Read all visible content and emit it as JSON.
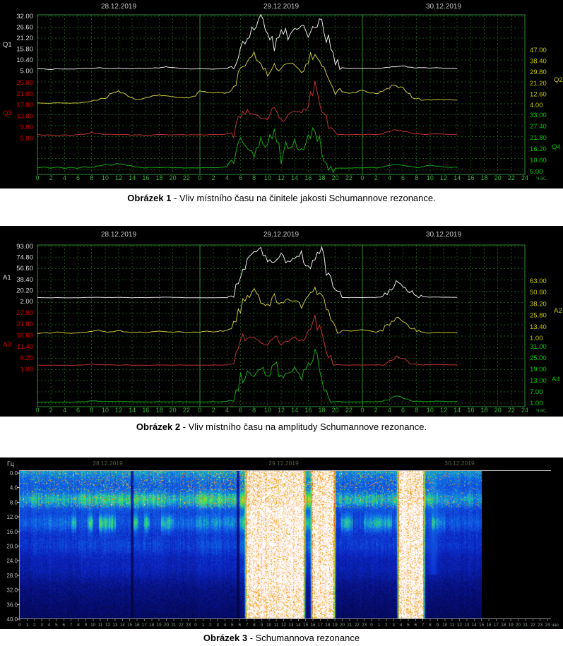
{
  "colors": {
    "page_bg": "#ffffff",
    "panel_bg": "#000000",
    "grid": "#1d4f1d",
    "grid_bright": "#2f8b2f",
    "hour_text": "#3fae3f",
    "hour_unit_text": "#2d7a2d",
    "date_text": "#c8c8c8",
    "caption_text": "#000000",
    "spec_date_text": "#5a5a46",
    "spec_freq_text": "#bebebe",
    "spec_hour_text": "#8fa08f",
    "spec_border_top": "#b5b5b5",
    "spec_border": "#8a8a8a"
  },
  "captions": [
    {
      "bold": "Obrázek 1",
      "rest": " - Vliv místního času na činitele jakosti Schumannove rezonance."
    },
    {
      "bold": "Obrázek 2",
      "rest": " - Vliv místního času na amplitudy Schumannove rezonance."
    },
    {
      "bold": "Obrázek 3",
      "rest": " - Schumannova rezonance"
    }
  ],
  "chart_data": [
    {
      "type": "line",
      "title": "Vliv místního času na činitele jakosti Schumannove rezonance",
      "dates": [
        "28.12.2019",
        "29.12.2019",
        "30.12.2019"
      ],
      "x_hour_labels": [
        "0",
        "2",
        "4",
        "6",
        "8",
        "10",
        "12",
        "14",
        "16",
        "18",
        "20",
        "22"
      ],
      "x_last_label": "24",
      "x_unit": "час.",
      "hours_per_day": 24,
      "days": 3,
      "grid": true,
      "axes": [
        {
          "name": "Q1",
          "side": "left",
          "color": "#e8e8e8",
          "label_color": "#dcdcdc",
          "min": 5,
          "max": 32,
          "ticks": [
            "32.00",
            "26.60",
            "21.20",
            "15.80",
            "10.40",
            "5.00"
          ]
        },
        {
          "name": "Q3",
          "side": "left",
          "color": "#c03232",
          "label_color": "#d40000",
          "min": 5,
          "max": 25,
          "ticks": [
            "25.00",
            "21.00",
            "17.00",
            "13.00",
            "9.00",
            "5.00"
          ]
        },
        {
          "name": "Q2",
          "side": "right",
          "color": "#c8c832",
          "label_color": "#c8c800",
          "min": 4,
          "max": 47,
          "ticks": [
            "47.00",
            "38.40",
            "29.80",
            "21.20",
            "12.60",
            "4.00"
          ]
        },
        {
          "name": "Q4",
          "side": "right",
          "color": "#16a816",
          "label_color": "#00c800",
          "min": 5,
          "max": 33,
          "ticks": [
            "33.00",
            "27.40",
            "21.80",
            "16.20",
            "10.60",
            "5.00"
          ]
        }
      ],
      "series": [
        {
          "name": "Q1",
          "axis": "Q1",
          "values": [
            6.2,
            6,
            5.8,
            6.1,
            6,
            5.9,
            6.1,
            6.4,
            6.2,
            6.6,
            6.3,
            6.1,
            6.5,
            6.2,
            6,
            6.3,
            6.1,
            6.4,
            6.6,
            7,
            6.6,
            6.3,
            6.1,
            6,
            6.1,
            6,
            5.9,
            6.1,
            6.3,
            7.5,
            14,
            23,
            26,
            31,
            24,
            18,
            27,
            22,
            25,
            28,
            22,
            27,
            31,
            19,
            7,
            6.4,
            6.2,
            6.3,
            6.2,
            6.3,
            6.1,
            6.4,
            6.8,
            7.2,
            7.4,
            6.9,
            6.5,
            6.6,
            6.4,
            6.6,
            6.4,
            6.2,
            6.3
          ]
        },
        {
          "name": "Q2",
          "axis": "Q2",
          "values": [
            5.8,
            5.5,
            5.6,
            5.9,
            5.7,
            5.6,
            5.8,
            6.2,
            7,
            8.5,
            10,
            13,
            14.5,
            12,
            9,
            8,
            9.5,
            11,
            12,
            11,
            10.5,
            10,
            9.5,
            11,
            14.5,
            14,
            13.5,
            14,
            13.2,
            17,
            31,
            39,
            43,
            34,
            28,
            37,
            31,
            38,
            34,
            29,
            40,
            44,
            37,
            24,
            15,
            14.2,
            13.5,
            14.3,
            16,
            14,
            12.5,
            15,
            18,
            20,
            16.5,
            12,
            9.5,
            8.3,
            8,
            8.4,
            8.1,
            8.2,
            8
          ]
        },
        {
          "name": "Q3",
          "axis": "Q3",
          "values": [
            6.4,
            6.1,
            6.3,
            6,
            6.2,
            6.1,
            6.3,
            6.6,
            7.2,
            6.8,
            6.4,
            6.5,
            6.3,
            6.4,
            6.2,
            6.3,
            6.1,
            6.2,
            6.4,
            6.3,
            6.2,
            6.4,
            6.2,
            6.3,
            6.3,
            6.2,
            6.4,
            6.3,
            6.5,
            7,
            13,
            15,
            14,
            12.5,
            12,
            16,
            11.5,
            13,
            15,
            13.5,
            17,
            24,
            17,
            8,
            6.6,
            6.4,
            6.3,
            6.4,
            6.3,
            6.5,
            6.4,
            6.6,
            7.4,
            8.2,
            7.6,
            7,
            6.6,
            6.4,
            6.5,
            6.7,
            6.5,
            6.4,
            6.5
          ]
        },
        {
          "name": "Q4",
          "axis": "Q4",
          "values": [
            6.8,
            7.4,
            6.6,
            7.2,
            6.7,
            7,
            6.6,
            7.3,
            7,
            7.8,
            8.6,
            8,
            9,
            8.4,
            7.6,
            7,
            6.8,
            7.2,
            6.9,
            7.1,
            6.8,
            7,
            6.7,
            6.9,
            6.8,
            7,
            6.9,
            7.1,
            7.3,
            12,
            24,
            18,
            14,
            20,
            16,
            27,
            13,
            17,
            20,
            14,
            22,
            28,
            16,
            6.8,
            6.6,
            6.8,
            6.7,
            6.9,
            6.8,
            7,
            6.9,
            7.4,
            8,
            8.6,
            8,
            7.6,
            7,
            7.4,
            8.2,
            7.8,
            7.4,
            7,
            7.2
          ]
        }
      ]
    },
    {
      "type": "line",
      "title": "Vliv místního času na amplitudy Schumannove rezonance",
      "dates": [
        "28.12.2019",
        "29.12.2019",
        "30.12.2019"
      ],
      "x_hour_labels": [
        "0",
        "2",
        "4",
        "6",
        "8",
        "10",
        "12",
        "14",
        "16",
        "18",
        "20",
        "22"
      ],
      "x_last_label": "24",
      "x_unit": "час.",
      "hours_per_day": 24,
      "days": 3,
      "grid": true,
      "axes": [
        {
          "name": "A1",
          "side": "left",
          "color": "#e8e8e8",
          "label_color": "#dcdcdc",
          "min": 2,
          "max": 93,
          "ticks": [
            "93.00",
            "74.80",
            "56.60",
            "38.40",
            "20.20",
            "2.00"
          ]
        },
        {
          "name": "A3",
          "side": "left",
          "color": "#c03232",
          "label_color": "#d40000",
          "min": 1,
          "max": 27,
          "ticks": [
            "27.00",
            "21.80",
            "16.60",
            "11.40",
            "6.20",
            "1.00"
          ]
        },
        {
          "name": "A2",
          "side": "right",
          "color": "#c8c832",
          "label_color": "#c8c800",
          "min": 1,
          "max": 63,
          "ticks": [
            "63.00",
            "50.60",
            "38.20",
            "25.80",
            "13.40",
            "1.00"
          ]
        },
        {
          "name": "A4",
          "side": "right",
          "color": "#16a816",
          "label_color": "#00c800",
          "min": 1,
          "max": 31,
          "ticks": [
            "31.00",
            "25.00",
            "19.00",
            "13.00",
            "7.00",
            "1.00"
          ]
        }
      ],
      "series": [
        {
          "name": "A1",
          "axis": "A1",
          "values": [
            8.5,
            8.2,
            8,
            8.3,
            8.1,
            8,
            8.2,
            8.5,
            8.8,
            9,
            8.6,
            8.4,
            8.8,
            8.5,
            8.2,
            8.4,
            8.3,
            8.6,
            8.8,
            9.2,
            8.8,
            8.5,
            8.2,
            8.1,
            8.2,
            8,
            8.1,
            8.3,
            8.6,
            12,
            55,
            75,
            83,
            88,
            70,
            62,
            78,
            68,
            74,
            80,
            58,
            72,
            90,
            45,
            10,
            8.8,
            8.4,
            8.5,
            8.4,
            8.6,
            8.5,
            9.5,
            20,
            34,
            30,
            18,
            11,
            9.5,
            9,
            9.4,
            9,
            8.8,
            8.9
          ]
        },
        {
          "name": "A2",
          "axis": "A2",
          "values": [
            6,
            7,
            6.3,
            7.5,
            6.8,
            6.3,
            6.8,
            7.5,
            8.5,
            9.5,
            8,
            7.6,
            9,
            8,
            7.2,
            7.6,
            7.2,
            8,
            8.5,
            8,
            7.6,
            8,
            7.2,
            7.6,
            7.6,
            8.5,
            7.6,
            9,
            8.5,
            12,
            34,
            44,
            52,
            42,
            36,
            46,
            38,
            45,
            42,
            35,
            48,
            56,
            44,
            26,
            11,
            9.5,
            8.5,
            9.5,
            10,
            9,
            8,
            10,
            17,
            24,
            20,
            12.5,
            8.5,
            7.2,
            6.8,
            7.3,
            7,
            7.1,
            6.9
          ]
        },
        {
          "name": "A3",
          "axis": "A3",
          "values": [
            2.9,
            2.8,
            2.9,
            2.8,
            2.9,
            2.8,
            2.9,
            3,
            3.4,
            3.1,
            3,
            3,
            2.9,
            3,
            2.9,
            2.9,
            2.8,
            2.9,
            3,
            2.9,
            2.9,
            3,
            2.9,
            2.9,
            2.9,
            2.9,
            3,
            2.9,
            3,
            3.6,
            13,
            16,
            15,
            13,
            12.5,
            17,
            12,
            14,
            15.5,
            13.5,
            18,
            24,
            16,
            5,
            3.1,
            3,
            2.9,
            3,
            2.9,
            3,
            3,
            3.1,
            4.2,
            6.8,
            5.6,
            4,
            3.4,
            3,
            3.1,
            3.2,
            3.1,
            3,
            3
          ]
        },
        {
          "name": "A4",
          "axis": "A4",
          "values": [
            1.6,
            1.5,
            1.6,
            1.5,
            1.6,
            1.5,
            1.7,
            1.8,
            2.2,
            2,
            1.8,
            1.9,
            1.8,
            1.9,
            1.7,
            1.8,
            1.6,
            1.7,
            1.8,
            1.7,
            1.6,
            1.8,
            1.6,
            1.7,
            1.7,
            1.6,
            1.8,
            1.7,
            1.9,
            3,
            14,
            18,
            16,
            20,
            15,
            24,
            13,
            16,
            19,
            14,
            21,
            27,
            15,
            2.5,
            1.8,
            1.7,
            1.6,
            1.7,
            1.7,
            1.8,
            1.7,
            2,
            3.2,
            4.5,
            3.8,
            2.6,
            2,
            1.8,
            1.9,
            2.1,
            1.9,
            1.8,
            1.9
          ]
        }
      ]
    },
    {
      "type": "heatmap",
      "title": "Schumannova rezonance",
      "ylabel": "Гц",
      "x_unit": "час",
      "dates": [
        "28.12.2019",
        "29.12.2019",
        "30.12.2019"
      ],
      "freq_ticks": [
        "0.0",
        "4.0",
        "8.0",
        "12.0",
        "16.0",
        "20.0",
        "24.0",
        "28.0",
        "32.0",
        "36.0",
        "40.0"
      ],
      "freq_range_hz": [
        0,
        40
      ],
      "hours_per_day": 24,
      "days": 3,
      "hour_labels_per_day": [
        "0",
        "1",
        "2",
        "3",
        "4",
        "5",
        "6",
        "7",
        "8",
        "9",
        "10",
        "11",
        "12",
        "13",
        "14",
        "15",
        "16",
        "17",
        "18",
        "19",
        "20",
        "21",
        "22",
        "23"
      ],
      "x_last_label": "24",
      "data_end_hour": 63,
      "resonance_bands_hz": [
        7.8,
        14.1,
        20.3,
        26.5
      ],
      "whiteout_hours": [
        [
          30.8,
          38.8
        ],
        [
          39.8,
          42.9
        ],
        [
          51.6,
          55.1
        ]
      ],
      "dropout_hours": [
        [
          15.1,
          15.45
        ],
        [
          29.55,
          29.95
        ]
      ],
      "green_streak_hours": [
        53.4,
        56.4
      ]
    }
  ]
}
